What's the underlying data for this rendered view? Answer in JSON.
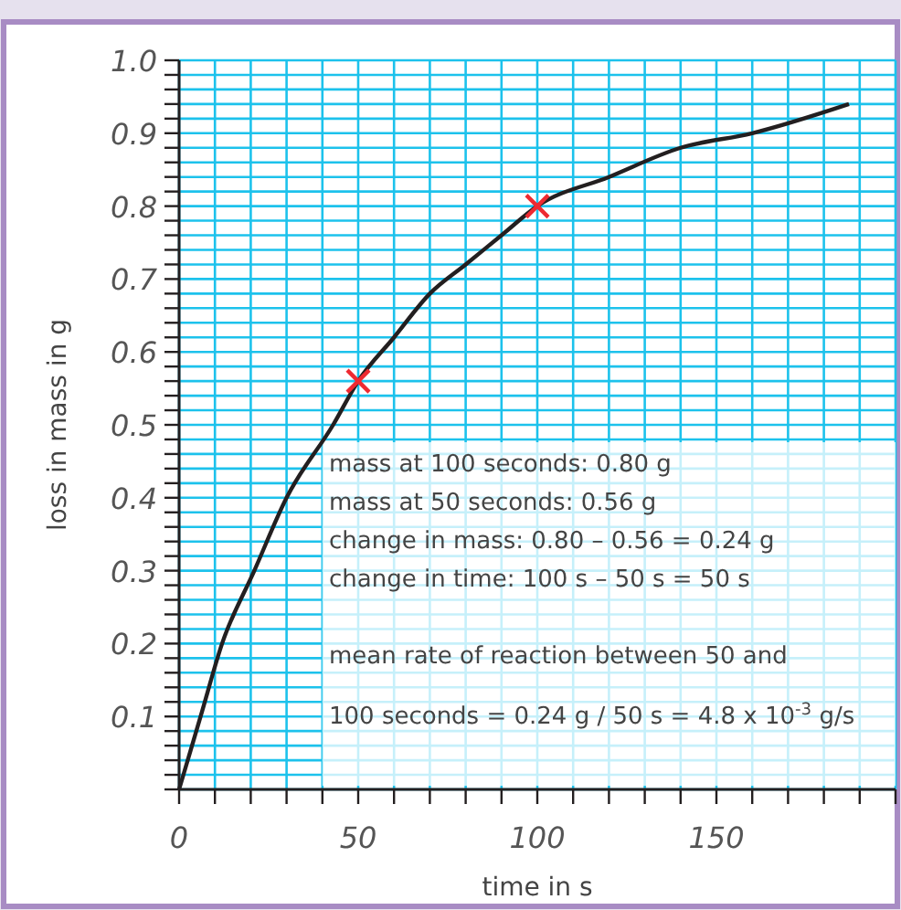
{
  "chart_data": {
    "type": "line",
    "xlabel": "time in s",
    "ylabel": "loss in mass in g",
    "xlim": [
      0,
      200
    ],
    "ylim": [
      0,
      1.0
    ],
    "xticks": [
      {
        "value": 0,
        "label": "0"
      },
      {
        "value": 10,
        "label": null
      },
      {
        "value": 20,
        "label": null
      },
      {
        "value": 30,
        "label": null
      },
      {
        "value": 40,
        "label": null
      },
      50,
      {
        "value": 60,
        "label": null
      },
      {
        "value": 70,
        "label": null
      },
      {
        "value": 80,
        "label": null
      },
      {
        "value": 90,
        "label": null
      },
      100,
      {
        "value": 110,
        "label": null
      },
      {
        "value": 120,
        "label": null
      },
      {
        "value": 130,
        "label": null
      },
      {
        "value": 140,
        "label": null
      },
      150,
      {
        "value": 160,
        "label": null
      },
      {
        "value": 170,
        "label": null
      },
      {
        "value": 180,
        "label": null
      },
      {
        "value": 190,
        "label": null
      },
      {
        "value": 200,
        "label": null
      }
    ],
    "yticks": [
      {
        "value": 0,
        "label": null
      },
      {
        "value": 0.02,
        "label": null
      },
      {
        "value": 0.04,
        "label": null
      },
      {
        "value": 0.06,
        "label": null
      },
      {
        "value": 0.08,
        "label": null
      },
      0.1,
      {
        "value": 0.12,
        "label": null
      },
      {
        "value": 0.14,
        "label": null
      },
      {
        "value": 0.16,
        "label": null
      },
      {
        "value": 0.18,
        "label": null
      },
      0.2,
      {
        "value": 0.22,
        "label": null
      },
      {
        "value": 0.24,
        "label": null
      },
      {
        "value": 0.26,
        "label": null
      },
      {
        "value": 0.28,
        "label": null
      },
      0.3,
      {
        "value": 0.32,
        "label": null
      },
      {
        "value": 0.34,
        "label": null
      },
      {
        "value": 0.36,
        "label": null
      },
      {
        "value": 0.38,
        "label": null
      },
      0.4,
      {
        "value": 0.42,
        "label": null
      },
      {
        "value": 0.44,
        "label": null
      },
      {
        "value": 0.46,
        "label": null
      },
      {
        "value": 0.48,
        "label": null
      },
      0.5,
      {
        "value": 0.52,
        "label": null
      },
      {
        "value": 0.54,
        "label": null
      },
      {
        "value": 0.56,
        "label": null
      },
      {
        "value": 0.58,
        "label": null
      },
      0.6,
      {
        "value": 0.62,
        "label": null
      },
      {
        "value": 0.64,
        "label": null
      },
      {
        "value": 0.66,
        "label": null
      },
      {
        "value": 0.68,
        "label": null
      },
      0.7,
      {
        "value": 0.72,
        "label": null
      },
      {
        "value": 0.74,
        "label": null
      },
      {
        "value": 0.76,
        "label": null
      },
      {
        "value": 0.78,
        "label": null
      },
      0.8,
      {
        "value": 0.82,
        "label": null
      },
      {
        "value": 0.84,
        "label": null
      },
      {
        "value": 0.86,
        "label": null
      },
      {
        "value": 0.88,
        "label": null
      },
      0.9,
      {
        "value": 0.92,
        "label": null
      },
      {
        "value": 0.94,
        "label": null
      },
      {
        "value": 0.96,
        "label": null
      },
      {
        "value": 0.98,
        "label": null
      },
      {
        "value": 1.0,
        "label": "1.0"
      }
    ],
    "grid": true,
    "series": [
      {
        "color": "#231f20",
        "marker": "none",
        "x": [
          0,
          6,
          12,
          21,
          30,
          43,
          50,
          60,
          70,
          80,
          90,
          100,
          120,
          140,
          160,
          187
        ],
        "values": [
          0,
          0.1,
          0.2,
          0.3,
          0.4,
          0.5,
          0.56,
          0.62,
          0.68,
          0.72,
          0.76,
          0.8,
          0.84,
          0.88,
          0.9,
          0.94
        ]
      },
      {
        "type": "scatter",
        "color": "#ee2a31",
        "marker": "cross",
        "x": [
          50,
          100
        ],
        "values": [
          0.56,
          0.8
        ]
      }
    ],
    "annotations": [
      "mass at 100 seconds: 0.80 g",
      "mass at 50 seconds: 0.56 g",
      "change in mass: 0.80 – 0.56 = 0.24 g",
      "change in time: 100 s – 50 s = 50 s",
      "mean rate of reaction between 50 and",
      "100 seconds = 0.24 g / 50 s = 4.8 x 10$^{-3}$ g/s"
    ]
  }
}
